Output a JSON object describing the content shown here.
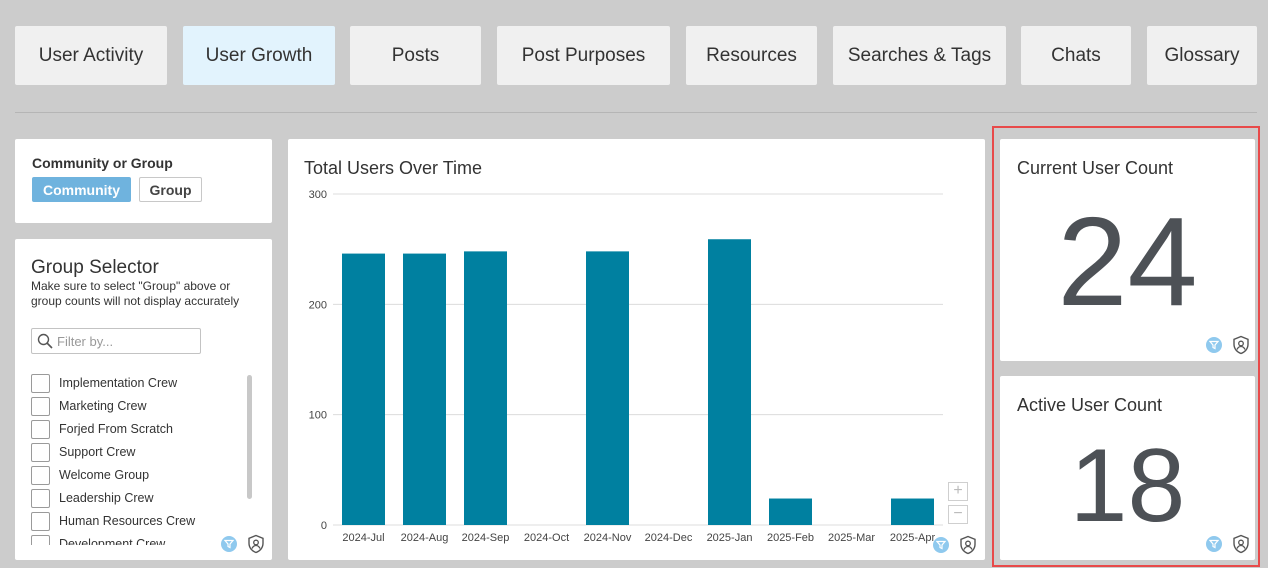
{
  "tabs": [
    {
      "label": "User Activity",
      "active": false
    },
    {
      "label": "User Growth",
      "active": true
    },
    {
      "label": "Posts",
      "active": false
    },
    {
      "label": "Post Purposes",
      "active": false
    },
    {
      "label": "Resources",
      "active": false
    },
    {
      "label": "Searches & Tags",
      "active": false
    },
    {
      "label": "Chats",
      "active": false
    },
    {
      "label": "Glossary",
      "active": false
    }
  ],
  "community_card": {
    "title": "Community or Group",
    "options": [
      "Community",
      "Group"
    ],
    "selected": "Community"
  },
  "group_selector": {
    "title": "Group Selector",
    "note": "Make sure to select \"Group\" above or group counts will not display accurately",
    "filter_placeholder": "Filter by...",
    "items": [
      {
        "label": "Implementation Crew",
        "checked": false
      },
      {
        "label": "Marketing Crew",
        "checked": false
      },
      {
        "label": "Forjed From Scratch",
        "checked": false
      },
      {
        "label": "Support Crew",
        "checked": false
      },
      {
        "label": "Welcome Group",
        "checked": false
      },
      {
        "label": "Leadership Crew",
        "checked": false
      },
      {
        "label": "Human Resources Crew",
        "checked": false
      },
      {
        "label": "Development Crew",
        "checked": false
      }
    ]
  },
  "chart_data": {
    "type": "bar",
    "title": "Total Users Over Time",
    "xlabel": "",
    "ylabel": "",
    "categories": [
      "2024-Jul",
      "2024-Aug",
      "2024-Sep",
      "2024-Oct",
      "2024-Nov",
      "2024-Dec",
      "2025-Jan",
      "2025-Feb",
      "2025-Mar",
      "2025-Apr"
    ],
    "values": [
      246,
      246,
      248,
      null,
      248,
      null,
      259,
      24,
      null,
      24
    ],
    "ylim": [
      0,
      300
    ],
    "yticks": [
      "0",
      "100",
      "200",
      "300"
    ],
    "grid": true,
    "color": "#0080a0"
  },
  "kpis": {
    "current": {
      "label": "Current User Count",
      "value": "24"
    },
    "active": {
      "label": "Active User Count",
      "value": "18"
    }
  },
  "icons": {
    "filter_badge": "filter-icon",
    "shield": "shield-user-icon",
    "search": "search-icon"
  },
  "colors": {
    "accent": "#6fb3de",
    "bar": "#0080a0",
    "active_tab": "#e2f3fd",
    "highlight": "#e84a4a"
  }
}
